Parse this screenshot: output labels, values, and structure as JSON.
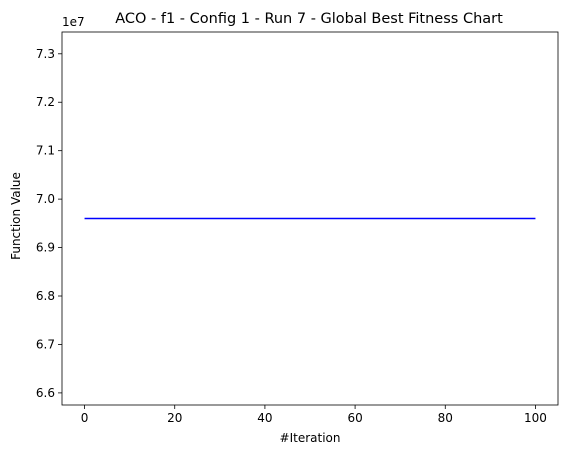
{
  "chart_data": {
    "type": "line",
    "title": "ACO - f1 - Config 1 - Run 7 - Global Best Fitness Chart",
    "xlabel": "#Iteration",
    "ylabel": "Function Value",
    "y_offset_label": "1e7",
    "xlim": [
      -5,
      105
    ],
    "ylim": [
      6.575,
      7.345
    ],
    "y_scale_factor": 10000000,
    "x_ticks": [
      0,
      20,
      40,
      60,
      80,
      100
    ],
    "x_tick_labels": [
      "0",
      "20",
      "40",
      "60",
      "80",
      "100"
    ],
    "y_ticks": [
      6.6,
      6.7,
      6.8,
      6.9,
      7.0,
      7.1,
      7.2,
      7.3
    ],
    "y_tick_labels": [
      "6.6",
      "6.7",
      "6.8",
      "6.9",
      "7.0",
      "7.1",
      "7.2",
      "7.3"
    ],
    "grid": false,
    "legend": "none",
    "series": [
      {
        "color": "#0000ff",
        "x": [
          0,
          100
        ],
        "y": [
          6.96,
          6.96
        ]
      }
    ]
  }
}
